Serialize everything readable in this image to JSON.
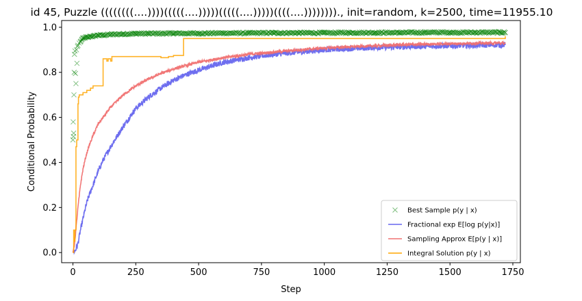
{
  "chart_data": {
    "type": "line",
    "title": "id 45, Puzzle ((((((((....))))(((((....)))))(((((....)))))((((....))))))))., init=random, k=2500, time=11955.10",
    "xlabel": "Step",
    "ylabel": "Conditional Probability",
    "xlim": [
      -45,
      1780
    ],
    "ylim": [
      -0.045,
      1.03
    ],
    "xticks": [
      0,
      250,
      500,
      750,
      1000,
      1250,
      1500,
      1750
    ],
    "yticks": [
      0.0,
      0.2,
      0.4,
      0.6,
      0.8,
      1.0
    ],
    "xtick_labels": [
      "0",
      "250",
      "500",
      "750",
      "1000",
      "1250",
      "1500",
      "1750"
    ],
    "ytick_labels": [
      "0.0",
      "0.2",
      "0.4",
      "0.6",
      "0.8",
      "1.0"
    ],
    "grid": false,
    "legend_position": "lower-right",
    "series": [
      {
        "name": "Best Sample p(y | x)",
        "kind": "scatter",
        "marker": "x",
        "color": "#008000",
        "x": [
          0,
          1,
          2,
          3,
          4,
          5,
          6,
          8,
          10,
          12,
          14,
          16,
          18,
          20,
          25,
          30,
          35,
          40,
          50,
          60,
          70,
          80,
          100,
          120,
          150,
          200,
          250,
          300,
          400,
          500,
          600,
          700,
          800,
          900,
          1000,
          1100,
          1200,
          1300,
          1400,
          1500,
          1600,
          1700,
          1720
        ],
        "y": [
          0.5,
          0.58,
          0.515,
          0.53,
          0.7,
          0.8,
          0.88,
          0.895,
          0.795,
          0.75,
          0.9,
          0.84,
          0.915,
          0.92,
          0.93,
          0.935,
          0.945,
          0.95,
          0.955,
          0.955,
          0.96,
          0.96,
          0.965,
          0.965,
          0.968,
          0.97,
          0.972,
          0.972,
          0.973,
          0.973,
          0.974,
          0.974,
          0.975,
          0.975,
          0.975,
          0.976,
          0.976,
          0.976,
          0.977,
          0.977,
          0.977,
          0.977,
          0.977
        ]
      },
      {
        "name": "Fractional exp E[log p(y|x)]",
        "kind": "line",
        "color": "#6666ee",
        "x": [
          0,
          10,
          20,
          30,
          40,
          50,
          60,
          70,
          80,
          100,
          120,
          150,
          200,
          250,
          300,
          350,
          400,
          450,
          500,
          600,
          700,
          800,
          900,
          1000,
          1100,
          1200,
          1300,
          1400,
          1500,
          1600,
          1700,
          1720
        ],
        "y": [
          0.0,
          0.01,
          0.04,
          0.1,
          0.15,
          0.2,
          0.24,
          0.27,
          0.3,
          0.36,
          0.41,
          0.47,
          0.56,
          0.64,
          0.69,
          0.73,
          0.765,
          0.79,
          0.81,
          0.845,
          0.865,
          0.88,
          0.89,
          0.9,
          0.905,
          0.91,
          0.913,
          0.916,
          0.918,
          0.92,
          0.922,
          0.922
        ]
      },
      {
        "name": "Sampling Approx E[p(y | x)]",
        "kind": "line",
        "color": "#f07070",
        "x": [
          0,
          5,
          10,
          15,
          20,
          30,
          40,
          50,
          60,
          70,
          80,
          100,
          120,
          150,
          200,
          250,
          300,
          350,
          400,
          450,
          500,
          600,
          700,
          800,
          900,
          1000,
          1100,
          1200,
          1300,
          1400,
          1500,
          1600,
          1700,
          1720
        ],
        "y": [
          0.0,
          0.03,
          0.08,
          0.14,
          0.2,
          0.3,
          0.37,
          0.42,
          0.46,
          0.49,
          0.52,
          0.57,
          0.6,
          0.645,
          0.7,
          0.74,
          0.77,
          0.795,
          0.815,
          0.83,
          0.845,
          0.865,
          0.88,
          0.89,
          0.9,
          0.908,
          0.913,
          0.918,
          0.922,
          0.925,
          0.927,
          0.929,
          0.93,
          0.93
        ]
      },
      {
        "name": "Integral Solution p(y | x)",
        "kind": "step",
        "color": "#ffa500",
        "x": [
          0,
          3,
          5,
          8,
          12,
          15,
          20,
          22,
          25,
          30,
          40,
          55,
          60,
          70,
          80,
          100,
          120,
          130,
          135,
          140,
          150,
          155,
          160,
          300,
          310,
          350,
          380,
          390,
          400,
          430,
          440,
          1720
        ],
        "y": [
          0.0,
          0.1,
          0.05,
          0.1,
          0.47,
          0.5,
          0.66,
          0.69,
          0.7,
          0.7,
          0.71,
          0.72,
          0.72,
          0.73,
          0.74,
          0.74,
          0.86,
          0.86,
          0.85,
          0.86,
          0.85,
          0.87,
          0.87,
          0.87,
          0.87,
          0.865,
          0.87,
          0.87,
          0.875,
          0.875,
          0.95,
          0.96
        ]
      }
    ]
  }
}
